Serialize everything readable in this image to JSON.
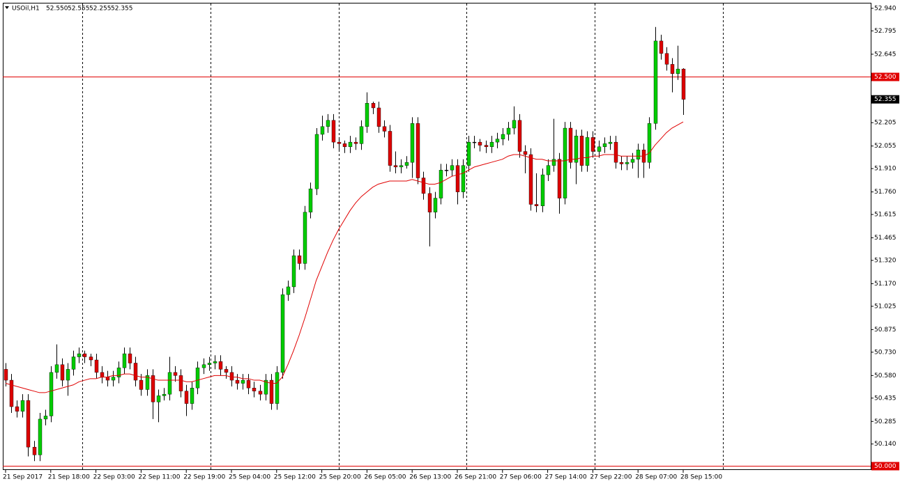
{
  "chart_data": {
    "type": "candlestick",
    "title": "USOil,H1",
    "header_ohlc": [
      {
        "value": 52.55,
        "label": "52.550"
      },
      {
        "value": 52.555,
        "label": "52.555"
      },
      {
        "value": 52.255,
        "label": "52.255"
      },
      {
        "value": 52.355,
        "label": "52.355"
      }
    ],
    "categories": [
      "21 Sep 2017",
      null,
      null,
      null,
      null,
      null,
      null,
      null,
      "21 Sep 18:00",
      null,
      null,
      null,
      null,
      null,
      null,
      null,
      "22 Sep 03:00",
      null,
      null,
      null,
      null,
      null,
      null,
      null,
      "22 Sep 11:00",
      null,
      null,
      null,
      null,
      null,
      null,
      null,
      "22 Sep 19:00",
      null,
      null,
      null,
      null,
      null,
      null,
      null,
      "25 Sep 04:00",
      null,
      null,
      null,
      null,
      null,
      null,
      null,
      "25 Sep 12:00",
      null,
      null,
      null,
      null,
      null,
      null,
      null,
      "25 Sep 20:00",
      null,
      null,
      null,
      null,
      null,
      null,
      null,
      "26 Sep 05:00",
      null,
      null,
      null,
      null,
      null,
      null,
      null,
      "26 Sep 13:00",
      null,
      null,
      null,
      null,
      null,
      null,
      null,
      "26 Sep 21:00",
      null,
      null,
      null,
      null,
      null,
      null,
      null,
      "27 Sep 06:00",
      null,
      null,
      null,
      null,
      null,
      null,
      null,
      "27 Sep 14:00",
      null,
      null,
      null,
      null,
      null,
      null,
      null,
      "27 Sep 22:00",
      null,
      null,
      null,
      null,
      null,
      null,
      null,
      "28 Sep 07:00",
      null,
      null,
      null,
      null,
      null,
      null,
      null,
      "28 Sep 15:00"
    ],
    "open": [
      50.62,
      50.55,
      50.38,
      50.35,
      50.42,
      50.12,
      50.07,
      50.3,
      50.32,
      50.6,
      50.65,
      50.55,
      50.62,
      50.7,
      50.72,
      50.7,
      50.68,
      50.6,
      50.57,
      50.55,
      50.57,
      50.63,
      50.72,
      50.66,
      50.55,
      50.49,
      50.58,
      50.41,
      50.45,
      50.46,
      50.6,
      50.58,
      50.48,
      50.4,
      50.5,
      50.63,
      50.65,
      50.66,
      50.67,
      50.62,
      50.6,
      50.55,
      50.53,
      50.55,
      50.5,
      50.48,
      50.46,
      50.55,
      50.4,
      50.6,
      51.1,
      51.15,
      51.35,
      51.3,
      51.63,
      51.78,
      52.13,
      52.18,
      52.22,
      52.08,
      52.07,
      52.05,
      52.08,
      52.07,
      52.18,
      52.33,
      52.3,
      52.18,
      52.15,
      51.93,
      51.92,
      51.93,
      51.95,
      52.2,
      51.85,
      51.75,
      51.63,
      51.72,
      51.9,
      51.9,
      51.93,
      51.76,
      51.93,
      52.08,
      52.08,
      52.06,
      52.05,
      52.08,
      52.1,
      52.13,
      52.17,
      52.22,
      52.02,
      52.0,
      51.68,
      51.67,
      51.87,
      51.93,
      51.97,
      51.72,
      52.17,
      51.95,
      52.12,
      51.93,
      52.11,
      52.02,
      52.05,
      52.07,
      52.08,
      51.95,
      51.94,
      51.95,
      51.97,
      52.03,
      51.95,
      52.2,
      52.73,
      52.65,
      52.58,
      52.52,
      52.55
    ],
    "high": [
      50.66,
      50.59,
      50.42,
      50.46,
      50.46,
      50.16,
      50.34,
      50.36,
      50.64,
      50.78,
      50.69,
      50.66,
      50.74,
      50.76,
      50.74,
      50.72,
      50.72,
      50.64,
      50.61,
      50.61,
      50.67,
      50.76,
      50.76,
      50.7,
      50.59,
      50.62,
      50.62,
      50.49,
      50.5,
      50.7,
      50.64,
      50.62,
      50.52,
      50.54,
      50.67,
      50.69,
      50.7,
      50.71,
      50.71,
      50.64,
      50.64,
      50.59,
      50.59,
      50.59,
      50.54,
      50.52,
      50.59,
      50.59,
      50.64,
      51.14,
      51.19,
      51.39,
      51.39,
      51.67,
      51.82,
      52.17,
      52.25,
      52.26,
      52.26,
      52.11,
      52.09,
      52.12,
      52.11,
      52.22,
      52.4,
      52.34,
      52.34,
      52.22,
      52.19,
      52.02,
      51.97,
      51.99,
      52.24,
      52.24,
      51.89,
      51.79,
      51.76,
      51.94,
      51.94,
      51.97,
      51.97,
      51.97,
      52.12,
      52.12,
      52.1,
      52.09,
      52.12,
      52.14,
      52.17,
      52.21,
      52.31,
      52.26,
      52.06,
      52.04,
      51.88,
      51.91,
      51.97,
      52.23,
      52.01,
      52.21,
      52.21,
      52.16,
      52.16,
      52.15,
      52.15,
      52.09,
      52.11,
      52.12,
      52.12,
      51.99,
      51.99,
      52.01,
      52.07,
      52.07,
      52.24,
      52.82,
      52.77,
      52.69,
      52.62,
      52.7,
      52.555
    ],
    "low": [
      50.51,
      50.34,
      50.31,
      50.31,
      50.06,
      50.03,
      50.03,
      50.26,
      50.28,
      50.56,
      50.51,
      50.45,
      50.58,
      50.66,
      50.66,
      50.64,
      50.56,
      50.53,
      50.51,
      50.51,
      50.53,
      50.59,
      50.62,
      50.51,
      50.45,
      50.45,
      50.3,
      50.28,
      50.42,
      50.42,
      50.54,
      50.44,
      50.32,
      50.36,
      50.46,
      50.59,
      50.61,
      50.62,
      50.58,
      50.56,
      50.51,
      50.49,
      50.49,
      50.46,
      50.44,
      50.42,
      50.42,
      50.36,
      50.36,
      50.56,
      51.06,
      51.11,
      51.26,
      51.26,
      51.59,
      51.74,
      52.09,
      52.14,
      52.04,
      52.03,
      52.01,
      52.01,
      52.03,
      52.03,
      52.14,
      52.26,
      52.14,
      52.11,
      51.89,
      51.88,
      51.88,
      51.91,
      51.85,
      51.81,
      51.71,
      51.41,
      51.59,
      51.68,
      51.86,
      51.86,
      51.68,
      51.72,
      51.89,
      52.04,
      52.02,
      52.01,
      52.01,
      52.04,
      52.06,
      52.09,
      52.13,
      51.98,
      51.88,
      51.64,
      51.63,
      51.63,
      51.83,
      51.89,
      51.62,
      51.68,
      51.91,
      51.81,
      51.89,
      51.89,
      51.98,
      51.98,
      52.01,
      52.03,
      51.91,
      51.9,
      51.9,
      51.91,
      51.85,
      51.85,
      51.91,
      52.16,
      52.61,
      52.54,
      52.4,
      52.48,
      52.255
    ],
    "close": [
      50.55,
      50.38,
      50.35,
      50.42,
      50.12,
      50.07,
      50.3,
      50.32,
      50.6,
      50.65,
      50.55,
      50.62,
      50.7,
      50.72,
      50.7,
      50.68,
      50.6,
      50.57,
      50.55,
      50.57,
      50.63,
      50.72,
      50.66,
      50.55,
      50.49,
      50.58,
      50.41,
      50.45,
      50.46,
      50.6,
      50.58,
      50.48,
      50.4,
      50.5,
      50.63,
      50.65,
      50.66,
      50.67,
      50.62,
      50.6,
      50.55,
      50.53,
      50.55,
      50.5,
      50.48,
      50.46,
      50.55,
      50.4,
      50.6,
      51.1,
      51.15,
      51.35,
      51.3,
      51.63,
      51.78,
      52.13,
      52.18,
      52.22,
      52.08,
      52.07,
      52.05,
      52.08,
      52.07,
      52.18,
      52.33,
      52.3,
      52.18,
      52.15,
      51.93,
      51.92,
      51.93,
      51.95,
      52.2,
      51.85,
      51.75,
      51.63,
      51.72,
      51.9,
      51.9,
      51.93,
      51.76,
      51.93,
      52.08,
      52.08,
      52.06,
      52.05,
      52.08,
      52.1,
      52.13,
      52.17,
      52.22,
      52.02,
      52.0,
      51.68,
      51.67,
      51.87,
      51.93,
      51.97,
      51.72,
      52.17,
      51.95,
      52.12,
      51.93,
      52.11,
      52.02,
      52.05,
      52.07,
      52.08,
      51.95,
      51.94,
      51.95,
      51.97,
      52.03,
      51.95,
      52.2,
      52.73,
      52.65,
      52.58,
      52.52,
      52.55,
      52.355
    ],
    "up_color": "#00cc00",
    "down_color": "#dd0000",
    "ma": {
      "color": "#e00000",
      "values": [
        50.53,
        50.52,
        50.51,
        50.5,
        50.49,
        50.48,
        50.47,
        50.47,
        50.48,
        50.49,
        50.5,
        50.51,
        50.52,
        50.54,
        50.55,
        50.56,
        50.56,
        50.57,
        50.57,
        50.58,
        50.58,
        50.59,
        50.59,
        50.58,
        50.57,
        50.57,
        50.56,
        50.55,
        50.55,
        50.55,
        50.55,
        50.55,
        50.54,
        50.54,
        50.55,
        50.56,
        50.57,
        50.58,
        50.58,
        50.58,
        50.57,
        50.57,
        50.56,
        50.56,
        50.55,
        50.55,
        50.54,
        50.53,
        50.53,
        50.57,
        50.65,
        50.74,
        50.84,
        50.95,
        51.07,
        51.19,
        51.28,
        51.37,
        51.45,
        51.52,
        51.58,
        51.64,
        51.69,
        51.73,
        51.76,
        51.79,
        51.81,
        51.82,
        51.83,
        51.83,
        51.83,
        51.83,
        51.84,
        51.83,
        51.82,
        51.81,
        51.81,
        51.82,
        51.84,
        51.86,
        51.87,
        51.88,
        51.9,
        51.92,
        51.93,
        51.94,
        51.95,
        51.96,
        51.97,
        51.99,
        52.0,
        52.0,
        51.99,
        51.98,
        51.97,
        51.97,
        51.96,
        51.96,
        51.96,
        51.96,
        51.97,
        51.97,
        51.98,
        51.98,
        51.99,
        51.99,
        52.0,
        52.0,
        52.0,
        51.99,
        51.99,
        51.99,
        51.99,
        51.99,
        52.01,
        52.06,
        52.1,
        52.14,
        52.17,
        52.19,
        52.21
      ]
    },
    "ylim": [
      49.973,
      52.971
    ],
    "yticks": [
      {
        "value": 52.94,
        "label": "52.940"
      },
      {
        "value": 52.795,
        "label": "52.795"
      },
      {
        "value": 52.645,
        "label": "52.645"
      },
      {
        "value": 52.205,
        "label": "52.205"
      },
      {
        "value": 52.055,
        "label": "52.055"
      },
      {
        "value": 51.91,
        "label": "51.910"
      },
      {
        "value": 51.76,
        "label": "51.760"
      },
      {
        "value": 51.615,
        "label": "51.615"
      },
      {
        "value": 51.465,
        "label": "51.465"
      },
      {
        "value": 51.32,
        "label": "51.320"
      },
      {
        "value": 51.17,
        "label": "51.170"
      },
      {
        "value": 51.025,
        "label": "51.025"
      },
      {
        "value": 50.875,
        "label": "50.875"
      },
      {
        "value": 50.73,
        "label": "50.730"
      },
      {
        "value": 50.58,
        "label": "50.580"
      },
      {
        "value": 50.435,
        "label": "50.435"
      },
      {
        "value": 50.285,
        "label": "50.285"
      },
      {
        "value": 50.14,
        "label": "50.140"
      }
    ],
    "hlines": [
      {
        "value": 52.5,
        "label": "52.500",
        "color": "#e00000"
      },
      {
        "value": 50.0,
        "label": "50.000",
        "color": "#e00000"
      }
    ],
    "last_price": {
      "value": 52.355,
      "label": "52.355"
    },
    "grid": false
  }
}
